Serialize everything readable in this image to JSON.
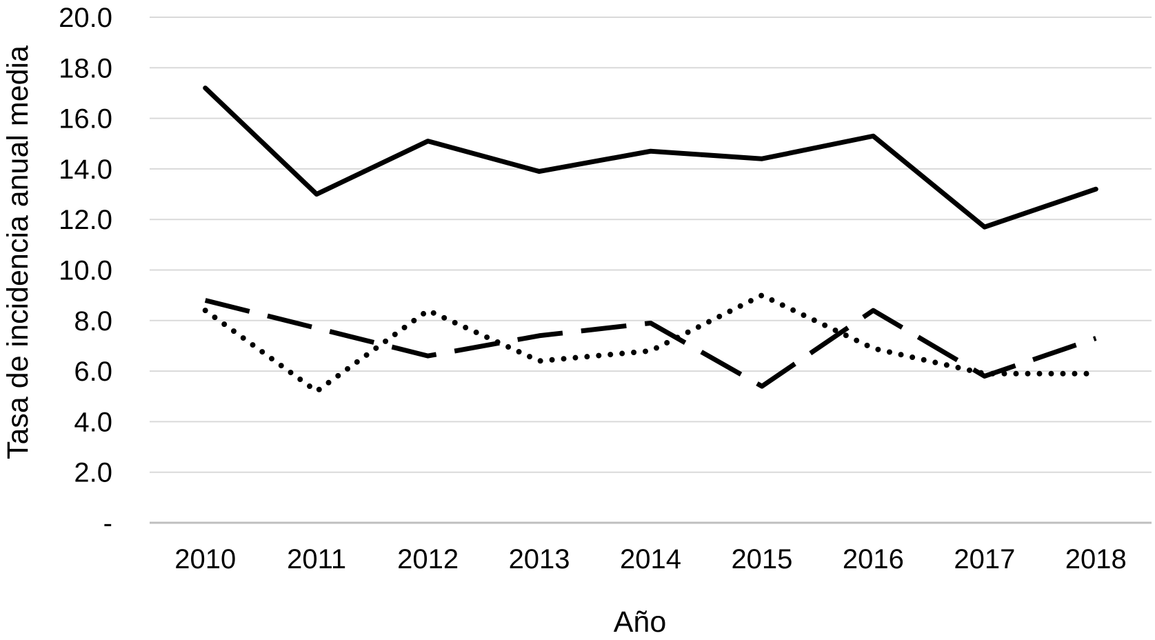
{
  "chart_data": {
    "type": "line",
    "title": "",
    "xlabel": "Año",
    "ylabel": "Tasa de incidencia anual media",
    "categories": [
      "2010",
      "2011",
      "2012",
      "2013",
      "2014",
      "2015",
      "2016",
      "2017",
      "2018"
    ],
    "series": [
      {
        "name": "solid",
        "line_style": "solid",
        "values": [
          17.2,
          13.0,
          15.1,
          13.9,
          14.7,
          14.4,
          15.3,
          11.7,
          13.2
        ]
      },
      {
        "name": "dashed",
        "line_style": "dashed",
        "values": [
          8.8,
          7.7,
          6.6,
          7.4,
          7.9,
          5.4,
          8.4,
          5.8,
          7.3
        ]
      },
      {
        "name": "dotted",
        "line_style": "dotted",
        "values": [
          8.4,
          5.2,
          8.4,
          6.4,
          6.8,
          9.0,
          6.9,
          5.9,
          5.9
        ]
      }
    ],
    "ylim": [
      0,
      20
    ],
    "y_tick_step": 2,
    "y_tick_labels": [
      "20.0",
      "18.0",
      "16.0",
      "14.0",
      "12.0",
      "10.0",
      "8.0",
      "6.0",
      "4.0",
      "2.0",
      "-"
    ],
    "grid": true,
    "legend_position": "none",
    "colors": {
      "series": "#000000",
      "gridline": "#d9d9d9",
      "axis_line": "#bfbfbf",
      "text": "#000000",
      "background": "#ffffff"
    }
  }
}
